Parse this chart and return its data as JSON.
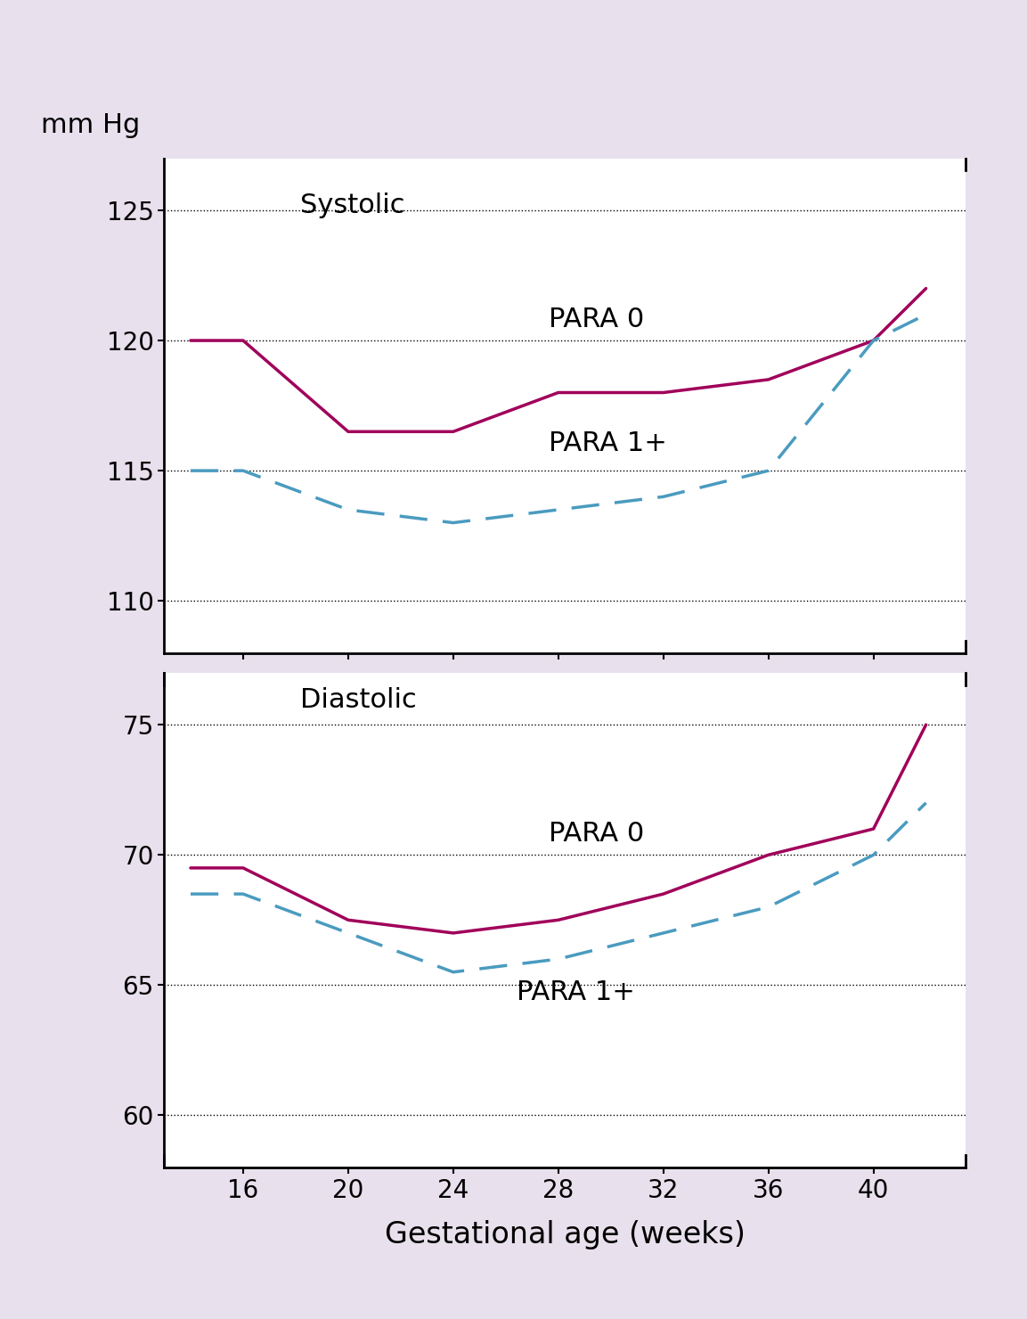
{
  "x_ticks": [
    16,
    20,
    24,
    28,
    32,
    36,
    40
  ],
  "x_values": [
    14,
    16,
    20,
    24,
    28,
    32,
    36,
    40,
    42
  ],
  "systolic_para0": [
    120,
    120,
    116.5,
    116.5,
    118,
    118,
    118.5,
    120,
    122
  ],
  "systolic_para1": [
    115,
    115,
    113.5,
    113,
    113.5,
    114,
    115,
    120,
    121
  ],
  "diastolic_para0": [
    69.5,
    69.5,
    67.5,
    67,
    67.5,
    68.5,
    70,
    71,
    75
  ],
  "diastolic_para1": [
    68.5,
    68.5,
    67,
    65.5,
    66,
    67,
    68,
    70,
    72
  ],
  "systolic_ylim": [
    108,
    127
  ],
  "systolic_yticks": [
    110,
    115,
    120,
    125
  ],
  "diastolic_ylim": [
    58,
    77
  ],
  "diastolic_yticks": [
    60,
    65,
    70,
    75
  ],
  "color_para0": "#A0005A",
  "color_para1": "#4A9BBF",
  "bg_color": "#E8E0EC",
  "plot_bg": "#FFFFFF",
  "xlabel": "Gestational age (weeks)",
  "mmhg_label": "mm Hg",
  "systolic_label": "Systolic",
  "diastolic_label": "Diastolic",
  "para0_label": "PARA 0",
  "para1_label": "PARA 1+",
  "tick_fontsize": 20,
  "axis_label_fontsize": 24,
  "annotation_fontsize": 22,
  "mmhg_fontsize": 22
}
